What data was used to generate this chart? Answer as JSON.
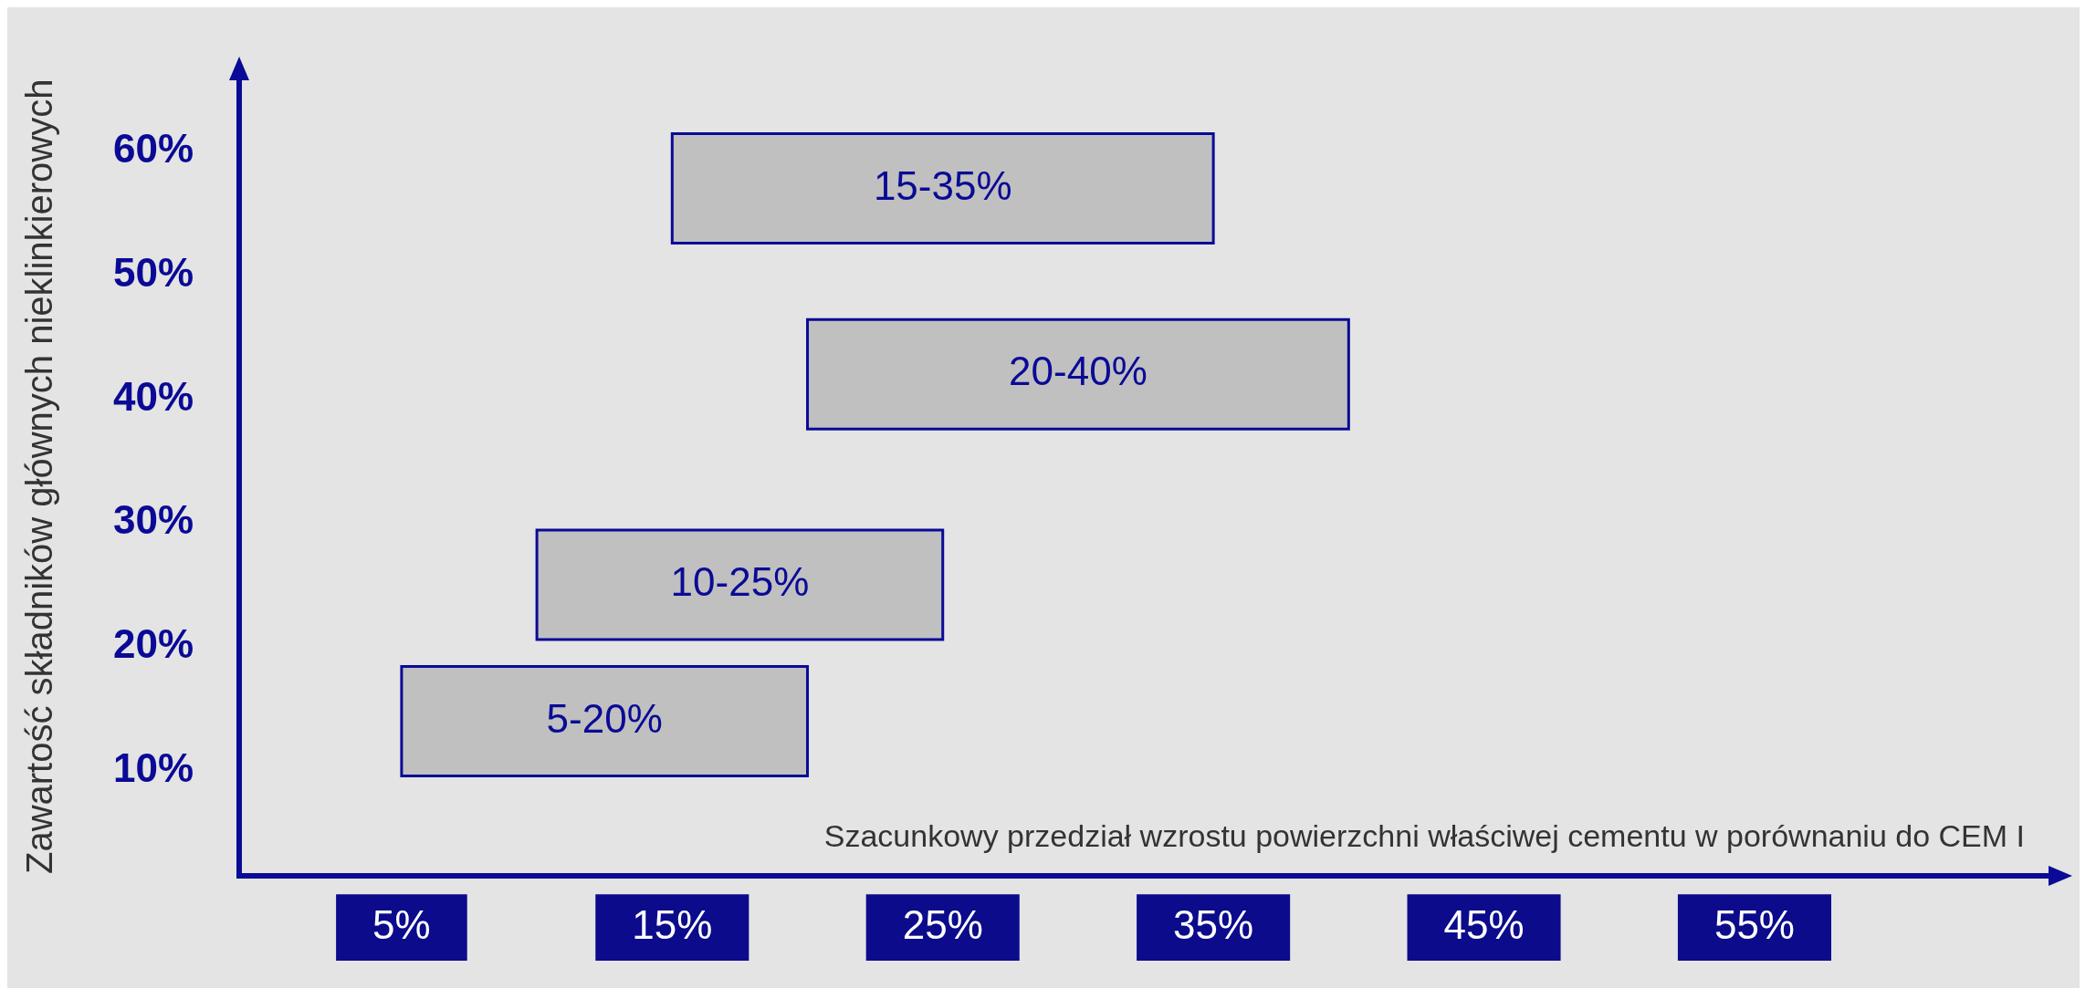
{
  "chart_data": {
    "type": "bar",
    "orientation": "horizontal",
    "xlabel": "Szacunkowy przedział wzrostu powierzchni właściwej cementu w porównaniu do CEM I",
    "ylabel": "Zawartość składników głównych nieklinkierowych",
    "x": [
      57,
      42,
      25,
      14
    ],
    "base": [
      15,
      20,
      10,
      5
    ],
    "values": [
      20,
      20,
      15,
      15
    ],
    "annotations": [
      "15-35%",
      "20-40%",
      "10-25%",
      "5-20%"
    ],
    "color": "#c0c0c0",
    "xlim": [
      -1,
      66
    ],
    "ylim": [
      1.5,
      66
    ],
    "xticks": [
      {
        "value": 5,
        "label": "5%"
      },
      {
        "value": 15,
        "label": "15%"
      },
      {
        "value": 25,
        "label": "25%"
      },
      {
        "value": 35,
        "label": "35%"
      },
      {
        "value": 45,
        "label": "45%"
      },
      {
        "value": 55,
        "label": "55%"
      }
    ],
    "yticks": [
      {
        "value": 10,
        "label": "10%"
      },
      {
        "value": 20,
        "label": "20%"
      },
      {
        "value": 30,
        "label": "30%"
      },
      {
        "value": 40,
        "label": "40%"
      },
      {
        "value": 50,
        "label": "50%"
      },
      {
        "value": 60,
        "label": "60%"
      }
    ],
    "grid": false,
    "legend": false
  }
}
